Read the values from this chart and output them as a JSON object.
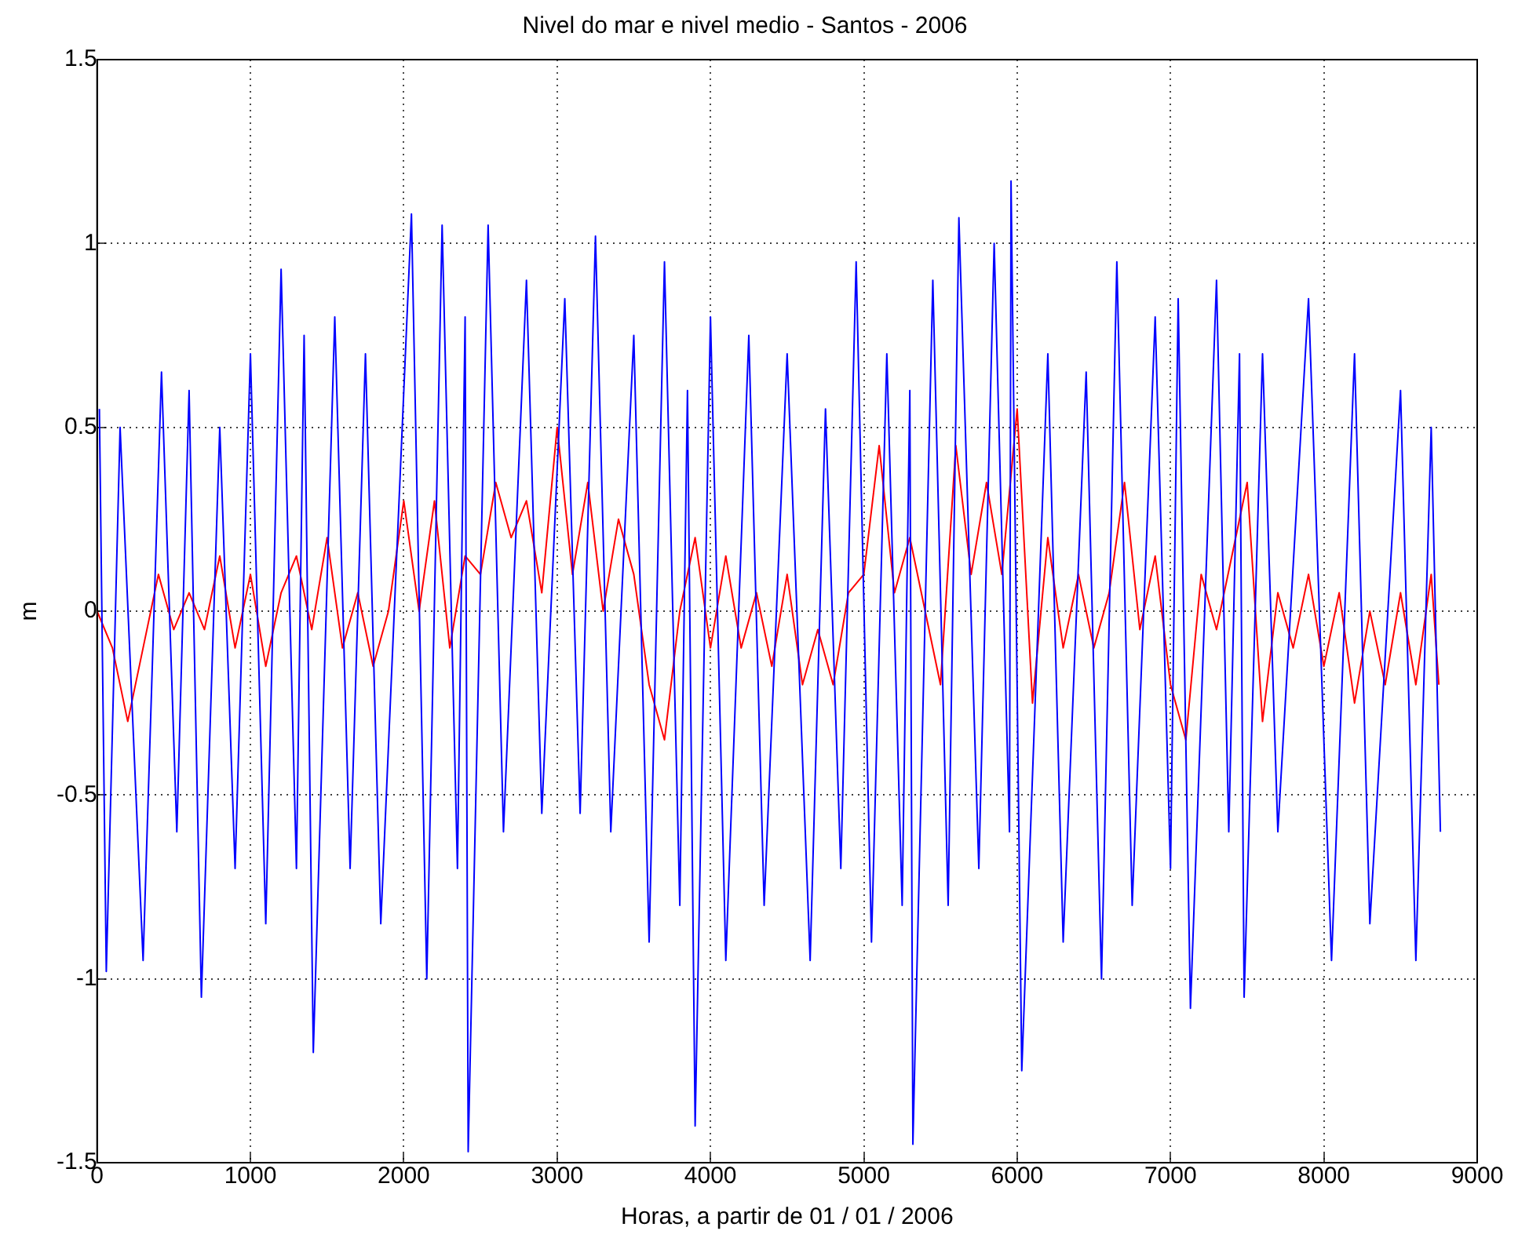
{
  "chart_data": {
    "type": "line",
    "title": "Nivel do mar e nivel medio - Santos - 2006",
    "xlabel": "Horas, a partir de 01 / 01 / 2006",
    "ylabel": "m",
    "xlim": [
      0,
      9000
    ],
    "xticks": [
      0,
      1000,
      2000,
      3000,
      4000,
      5000,
      6000,
      7000,
      8000,
      9000
    ],
    "ylim": [
      -1.5,
      1.5
    ],
    "yticks": [
      -1.5,
      -1,
      -0.5,
      0,
      0.5,
      1,
      1.5
    ],
    "grid": true,
    "legend": false,
    "marker": "none",
    "line_style": "solid",
    "series": [
      {
        "color": "#0000ff",
        "x": [
          15,
          60,
          150,
          300,
          420,
          520,
          600,
          680,
          800,
          900,
          1000,
          1100,
          1200,
          1300,
          1350,
          1410,
          1550,
          1650,
          1750,
          1850,
          2050,
          2150,
          2250,
          2350,
          2400,
          2420,
          2550,
          2650,
          2800,
          2900,
          3050,
          3150,
          3250,
          3350,
          3500,
          3600,
          3700,
          3800,
          3850,
          3900,
          4000,
          4100,
          4250,
          4350,
          4500,
          4650,
          4750,
          4850,
          4950,
          5050,
          5150,
          5250,
          5300,
          5320,
          5450,
          5550,
          5620,
          5750,
          5850,
          5950,
          5960,
          6030,
          6200,
          6300,
          6450,
          6550,
          6650,
          6750,
          6900,
          7000,
          7050,
          7130,
          7300,
          7380,
          7450,
          7480,
          7600,
          7700,
          7900,
          8050,
          8200,
          8300,
          8500,
          8600,
          8700,
          8760
        ],
        "values": [
          0.55,
          -0.98,
          0.5,
          -0.95,
          0.65,
          -0.6,
          0.6,
          -1.05,
          0.5,
          -0.7,
          0.7,
          -0.85,
          0.93,
          -0.7,
          0.75,
          -1.2,
          0.8,
          -0.7,
          0.7,
          -0.85,
          1.08,
          -1.0,
          1.05,
          -0.7,
          0.8,
          -1.47,
          1.05,
          -0.6,
          0.9,
          -0.55,
          0.85,
          -0.55,
          1.02,
          -0.6,
          0.75,
          -0.9,
          0.95,
          -0.8,
          0.6,
          -1.4,
          0.8,
          -0.95,
          0.75,
          -0.8,
          0.7,
          -0.95,
          0.55,
          -0.7,
          0.95,
          -0.9,
          0.7,
          -0.8,
          0.6,
          -1.45,
          0.9,
          -0.8,
          1.07,
          -0.7,
          1.0,
          -0.6,
          1.17,
          -1.25,
          0.7,
          -0.9,
          0.65,
          -1.0,
          0.95,
          -0.8,
          0.8,
          -0.7,
          0.85,
          -1.08,
          0.9,
          -0.6,
          0.7,
          -1.05,
          0.7,
          -0.6,
          0.85,
          -0.95,
          0.7,
          -0.85,
          0.6,
          -0.95,
          0.5,
          -0.6
        ]
      },
      {
        "color": "#ff0000",
        "x": [
          0,
          100,
          200,
          300,
          400,
          500,
          600,
          700,
          800,
          900,
          1000,
          1100,
          1200,
          1300,
          1400,
          1500,
          1600,
          1700,
          1800,
          1900,
          2000,
          2100,
          2200,
          2300,
          2400,
          2500,
          2600,
          2700,
          2800,
          2900,
          3000,
          3100,
          3200,
          3300,
          3400,
          3500,
          3600,
          3700,
          3800,
          3900,
          4000,
          4100,
          4200,
          4300,
          4400,
          4500,
          4600,
          4700,
          4800,
          4900,
          5000,
          5100,
          5200,
          5300,
          5400,
          5500,
          5600,
          5700,
          5800,
          5900,
          6000,
          6100,
          6200,
          6300,
          6400,
          6500,
          6600,
          6700,
          6800,
          6900,
          7000,
          7100,
          7200,
          7300,
          7400,
          7500,
          7600,
          7700,
          7800,
          7900,
          8000,
          8100,
          8200,
          8300,
          8400,
          8500,
          8600,
          8700,
          8750
        ],
        "values": [
          0.0,
          -0.1,
          -0.3,
          -0.1,
          0.1,
          -0.05,
          0.05,
          -0.05,
          0.15,
          -0.1,
          0.1,
          -0.15,
          0.05,
          0.15,
          -0.05,
          0.2,
          -0.1,
          0.05,
          -0.15,
          0.0,
          0.3,
          0.0,
          0.3,
          -0.1,
          0.15,
          0.1,
          0.35,
          0.2,
          0.3,
          0.05,
          0.5,
          0.1,
          0.35,
          0.0,
          0.25,
          0.1,
          -0.2,
          -0.35,
          0.0,
          0.2,
          -0.1,
          0.15,
          -0.1,
          0.05,
          -0.15,
          0.1,
          -0.2,
          -0.05,
          -0.2,
          0.05,
          0.1,
          0.45,
          0.05,
          0.2,
          0.0,
          -0.2,
          0.45,
          0.1,
          0.35,
          0.1,
          0.55,
          -0.25,
          0.2,
          -0.1,
          0.1,
          -0.1,
          0.05,
          0.35,
          -0.05,
          0.15,
          -0.2,
          -0.35,
          0.1,
          -0.05,
          0.15,
          0.35,
          -0.3,
          0.05,
          -0.1,
          0.1,
          -0.15,
          0.05,
          -0.25,
          0.0,
          -0.2,
          0.05,
          -0.2,
          0.1,
          -0.2
        ]
      }
    ]
  }
}
